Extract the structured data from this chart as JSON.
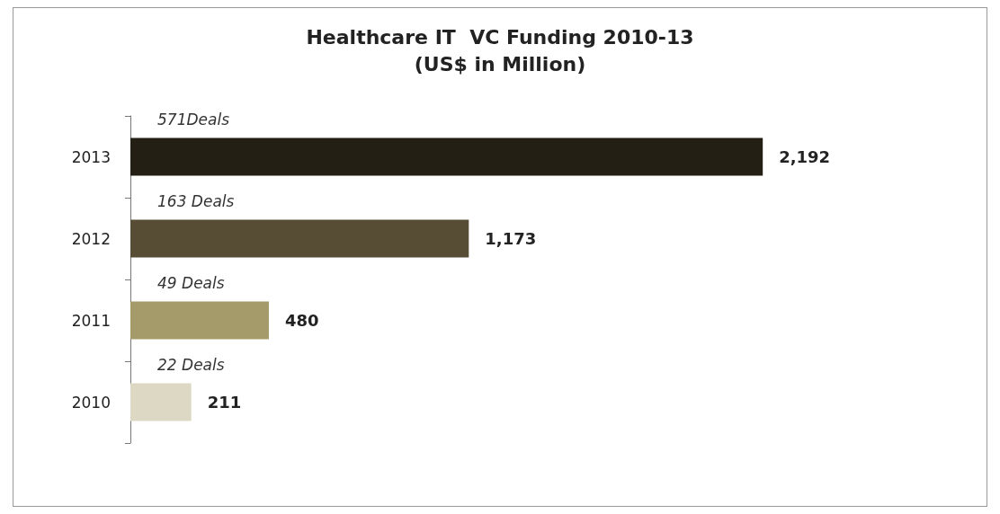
{
  "chart_data": {
    "type": "bar",
    "orientation": "horizontal",
    "title": "Healthcare IT  VC Funding 2010-13",
    "subtitle": "(US$ in Million)",
    "categories": [
      "2013",
      "2012",
      "2011",
      "2010"
    ],
    "values": [
      2192,
      1173,
      480,
      211
    ],
    "colors": [
      "#231f14",
      "#574d35",
      "#a49a6a",
      "#ddd8c4"
    ],
    "value_labels": [
      "2,192",
      "1,173",
      "480",
      "211"
    ],
    "annotations": [
      "571Deals",
      "163 Deals",
      "49 Deals",
      "22 Deals"
    ]
  }
}
